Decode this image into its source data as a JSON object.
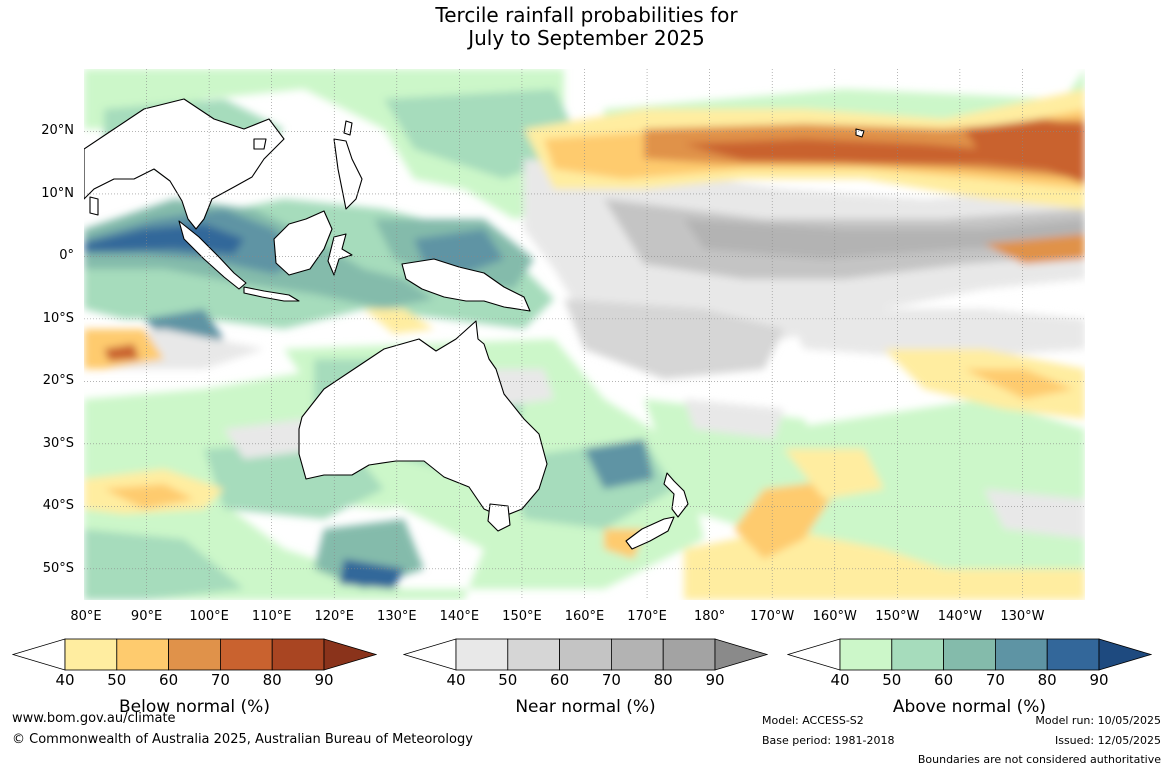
{
  "title": {
    "line1": "Tercile rainfall probabilities for",
    "line2": "July to September 2025"
  },
  "map": {
    "lat_labels": [
      "20°N",
      "10°N",
      "0°",
      "10°S",
      "20°S",
      "30°S",
      "40°S",
      "50°S"
    ],
    "lon_labels": [
      "80°E",
      "90°E",
      "100°E",
      "110°E",
      "120°E",
      "130°E",
      "140°E",
      "150°E",
      "160°E",
      "170°E",
      "180°",
      "170°W",
      "160°W",
      "150°W",
      "140°W",
      "130°W"
    ],
    "lat_range": [
      -55,
      30
    ],
    "lon_range": [
      80,
      240
    ],
    "grid": true
  },
  "legend": {
    "below": {
      "label": "Below normal (%)",
      "ticks": [
        "40",
        "50",
        "60",
        "70",
        "80",
        "90"
      ],
      "colors": [
        "#ffeda0",
        "#fecb6e",
        "#e0924a",
        "#c9622f",
        "#a94522",
        "#8a331b"
      ]
    },
    "near": {
      "label": "Near normal (%)",
      "ticks": [
        "40",
        "50",
        "60",
        "70",
        "80",
        "90"
      ],
      "colors": [
        "#e8e8e8",
        "#d6d6d6",
        "#c4c4c4",
        "#b3b3b3",
        "#a3a3a3",
        "#8a8a8a"
      ]
    },
    "above": {
      "label": "Above normal (%)",
      "ticks": [
        "40",
        "50",
        "60",
        "70",
        "80",
        "90"
      ],
      "colors": [
        "#ccf7c9",
        "#a6dcbc",
        "#84bbab",
        "#5e94a4",
        "#33679a",
        "#1e4a7f"
      ]
    }
  },
  "footer": {
    "url": "www.bom.gov.au/climate",
    "copyright": "© Commonwealth of Australia 2025, Australian Bureau of Meteorology",
    "model": "Model: ACCESS-S2",
    "base_period": "Base period: 1981-2018",
    "model_run": "Model run: 10/05/2025",
    "issued": "Issued: 12/05/2025",
    "disclaimer": "Boundaries are not considered authoritative"
  }
}
